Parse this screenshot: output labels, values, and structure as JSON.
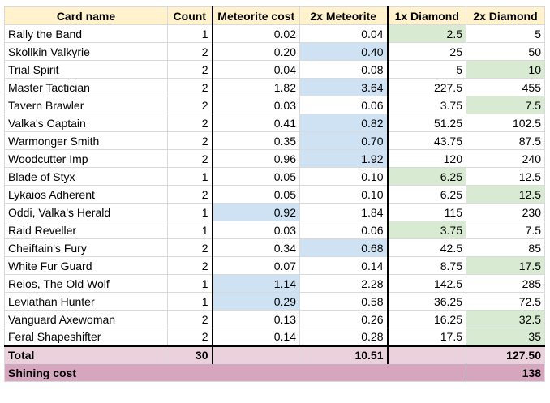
{
  "columns": [
    "Card name",
    "Count",
    "Meteorite cost",
    "2x Meteorite",
    "1x Diamond",
    "2x Diamond"
  ],
  "rows": [
    {
      "name": "Rally the Band",
      "count": "1",
      "met": "0.02",
      "met2": "0.04",
      "dia": "2.5",
      "dia2": "5",
      "hl": [
        null,
        null,
        null,
        null,
        "green",
        null
      ]
    },
    {
      "name": "Skollkin Valkyrie",
      "count": "2",
      "met": "0.20",
      "met2": "0.40",
      "dia": "25",
      "dia2": "50",
      "hl": [
        null,
        null,
        null,
        "blue",
        null,
        null
      ]
    },
    {
      "name": "Trial Spirit",
      "count": "2",
      "met": "0.04",
      "met2": "0.08",
      "dia": "5",
      "dia2": "10",
      "hl": [
        null,
        null,
        null,
        null,
        null,
        "green"
      ]
    },
    {
      "name": "Master Tactician",
      "count": "2",
      "met": "1.82",
      "met2": "3.64",
      "dia": "227.5",
      "dia2": "455",
      "hl": [
        null,
        null,
        null,
        "blue",
        null,
        null
      ]
    },
    {
      "name": "Tavern Brawler",
      "count": "2",
      "met": "0.03",
      "met2": "0.06",
      "dia": "3.75",
      "dia2": "7.5",
      "hl": [
        null,
        null,
        null,
        null,
        null,
        "green"
      ]
    },
    {
      "name": "Valka's Captain",
      "count": "2",
      "met": "0.41",
      "met2": "0.82",
      "dia": "51.25",
      "dia2": "102.5",
      "hl": [
        null,
        null,
        null,
        "blue",
        null,
        null
      ]
    },
    {
      "name": "Warmonger Smith",
      "count": "2",
      "met": "0.35",
      "met2": "0.70",
      "dia": "43.75",
      "dia2": "87.5",
      "hl": [
        null,
        null,
        null,
        "blue",
        null,
        null
      ]
    },
    {
      "name": "Woodcutter Imp",
      "count": "2",
      "met": "0.96",
      "met2": "1.92",
      "dia": "120",
      "dia2": "240",
      "hl": [
        null,
        null,
        null,
        "blue",
        null,
        null
      ]
    },
    {
      "name": "Blade of Styx",
      "count": "1",
      "met": "0.05",
      "met2": "0.10",
      "dia": "6.25",
      "dia2": "12.5",
      "hl": [
        null,
        null,
        null,
        null,
        "green",
        null
      ]
    },
    {
      "name": "Lykaios Adherent",
      "count": "2",
      "met": "0.05",
      "met2": "0.10",
      "dia": "6.25",
      "dia2": "12.5",
      "hl": [
        null,
        null,
        null,
        null,
        null,
        "green"
      ]
    },
    {
      "name": "Oddi, Valka's Herald",
      "count": "1",
      "met": "0.92",
      "met2": "1.84",
      "dia": "115",
      "dia2": "230",
      "hl": [
        null,
        null,
        "blue",
        null,
        null,
        null
      ]
    },
    {
      "name": "Raid Reveller",
      "count": "1",
      "met": "0.03",
      "met2": "0.06",
      "dia": "3.75",
      "dia2": "7.5",
      "hl": [
        null,
        null,
        null,
        null,
        "green",
        null
      ]
    },
    {
      "name": "Cheiftain's Fury",
      "count": "2",
      "met": "0.34",
      "met2": "0.68",
      "dia": "42.5",
      "dia2": "85",
      "hl": [
        null,
        null,
        null,
        "blue",
        null,
        null
      ]
    },
    {
      "name": "White Fur Guard",
      "count": "2",
      "met": "0.07",
      "met2": "0.14",
      "dia": "8.75",
      "dia2": "17.5",
      "hl": [
        null,
        null,
        null,
        null,
        null,
        "green"
      ]
    },
    {
      "name": "Reios, The Old Wolf",
      "count": "1",
      "met": "1.14",
      "met2": "2.28",
      "dia": "142.5",
      "dia2": "285",
      "hl": [
        null,
        null,
        "blue",
        null,
        null,
        null
      ]
    },
    {
      "name": "Leviathan Hunter",
      "count": "1",
      "met": "0.29",
      "met2": "0.58",
      "dia": "36.25",
      "dia2": "72.5",
      "hl": [
        null,
        null,
        "blue",
        null,
        null,
        null
      ]
    },
    {
      "name": "Vanguard Axewoman",
      "count": "2",
      "met": "0.13",
      "met2": "0.26",
      "dia": "16.25",
      "dia2": "32.5",
      "hl": [
        null,
        null,
        null,
        null,
        null,
        "green"
      ]
    },
    {
      "name": "Feral Shapeshifter",
      "count": "2",
      "met": "0.14",
      "met2": "0.28",
      "dia": "17.5",
      "dia2": "35",
      "hl": [
        null,
        null,
        null,
        null,
        null,
        "green"
      ]
    }
  ],
  "total": {
    "label": "Total",
    "count": "30",
    "met2": "10.51",
    "dia2": "127.50"
  },
  "shining": {
    "label": "Shining cost",
    "value": "138"
  },
  "colors": {
    "header": "#fff2cc",
    "blue": "#cfe2f3",
    "green": "#d9ead3",
    "total": "#ead1dc",
    "shining": "#d5a6bd"
  }
}
